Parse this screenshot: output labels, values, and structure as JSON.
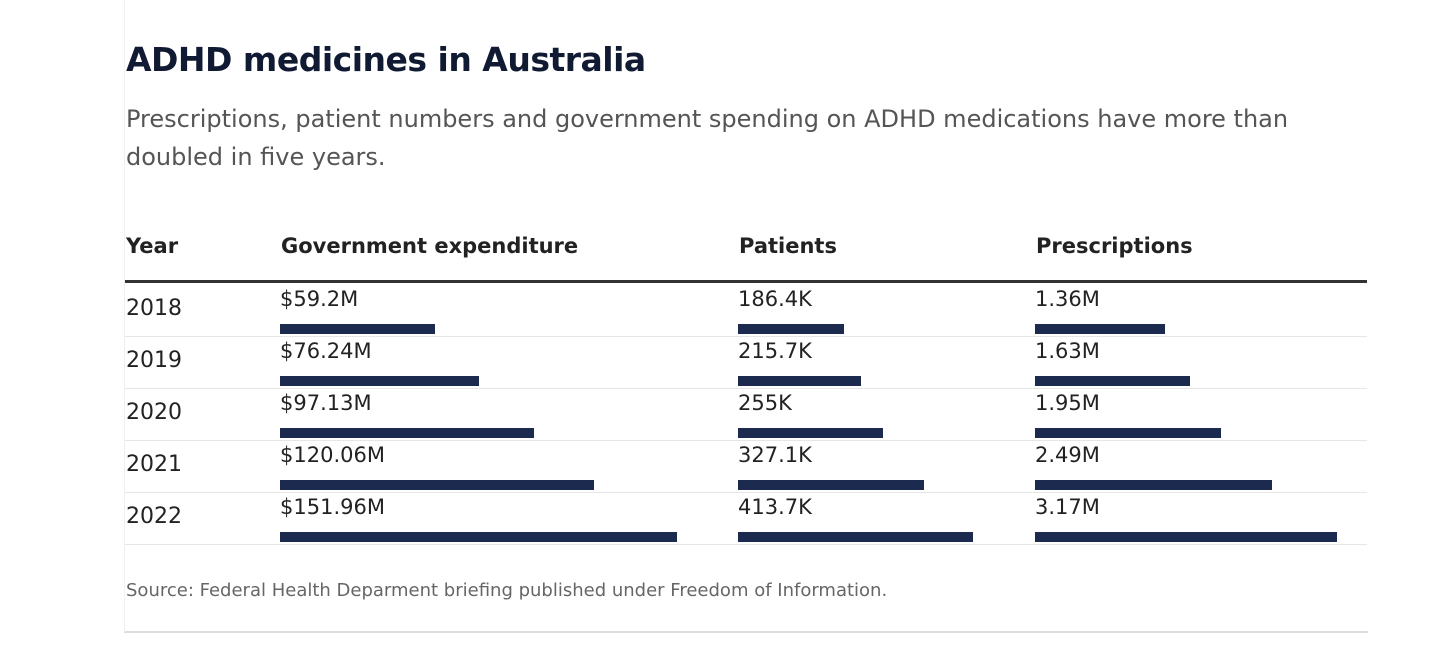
{
  "title": "ADHD medicines in Australia",
  "subtitle": "Prescriptions, patient numbers and government spending on ADHD medications have more than doubled in five years.",
  "source": "Source: Federal Health Deparment briefing published under Freedom of Information.",
  "colors": {
    "bar": "#1b2a4e"
  },
  "chart_data": {
    "type": "table",
    "title": "ADHD medicines in Australia",
    "columns": [
      "Year",
      "Government expenditure",
      "Patients",
      "Prescriptions"
    ],
    "rows": [
      {
        "year": "2018",
        "expenditure_label": "$59.2M",
        "expenditure": 59.2,
        "patients_label": "186.4K",
        "patients": 186.4,
        "prescriptions_label": "1.36M",
        "prescriptions": 1.36
      },
      {
        "year": "2019",
        "expenditure_label": "$76.24M",
        "expenditure": 76.24,
        "patients_label": "215.7K",
        "patients": 215.7,
        "prescriptions_label": "1.63M",
        "prescriptions": 1.63
      },
      {
        "year": "2020",
        "expenditure_label": "$97.13M",
        "expenditure": 97.13,
        "patients_label": "255K",
        "patients": 255,
        "prescriptions_label": "1.95M",
        "prescriptions": 1.95
      },
      {
        "year": "2021",
        "expenditure_label": "$120.06M",
        "expenditure": 120.06,
        "patients_label": "327.1K",
        "patients": 327.1,
        "prescriptions_label": "2.49M",
        "prescriptions": 2.49
      },
      {
        "year": "2022",
        "expenditure_label": "$151.96M",
        "expenditure": 151.96,
        "patients_label": "413.7K",
        "patients": 413.7,
        "prescriptions_label": "3.17M",
        "prescriptions": 3.17
      }
    ]
  }
}
